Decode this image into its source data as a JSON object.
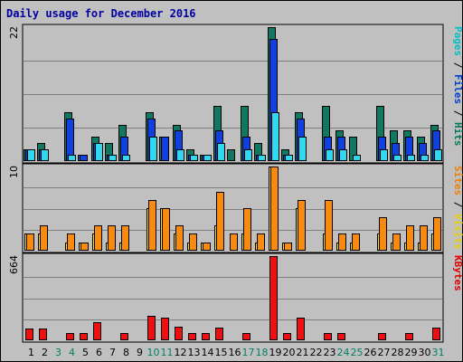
{
  "chart_data": {
    "type": "bar",
    "title": "Daily usage for December 2016",
    "x": [
      "1",
      "2",
      "3",
      "4",
      "5",
      "6",
      "7",
      "8",
      "9",
      "10",
      "11",
      "12",
      "13",
      "14",
      "15",
      "16",
      "17",
      "18",
      "19",
      "20",
      "21",
      "22",
      "23",
      "24",
      "25",
      "26",
      "27",
      "28",
      "29",
      "30",
      "31"
    ],
    "weekend_days": [
      "3",
      "4",
      "10",
      "11",
      "17",
      "18",
      "24",
      "25",
      "31"
    ],
    "panels": [
      {
        "id": "pages-files-hits",
        "axis_max_label": "22",
        "ylim": [
          0,
          22
        ],
        "legend": [
          {
            "text": "Pages",
            "color": "#00c0c0"
          },
          {
            "text": " / ",
            "color": "#000000"
          },
          {
            "text": "Files",
            "color": "#0040d0"
          },
          {
            "text": " / ",
            "color": "#000000"
          },
          {
            "text": "Hits",
            "color": "#007a5a"
          }
        ],
        "series": [
          {
            "key": "hits",
            "color": "#107860",
            "values": [
              2,
              3,
              0,
              8,
              1,
              4,
              3,
              6,
              0,
              8,
              4,
              6,
              2,
              1,
              9,
              2,
              9,
              3,
              22,
              2,
              8,
              0,
              9,
              5,
              4,
              0,
              9,
              5,
              5,
              4,
              6
            ]
          },
          {
            "key": "files",
            "color": "#1040e0",
            "values": [
              2,
              2,
              0,
              7,
              1,
              3,
              1,
              4,
              0,
              7,
              4,
              5,
              1,
              1,
              5,
              0,
              4,
              1,
              20,
              1,
              7,
              0,
              4,
              4,
              0,
              0,
              4,
              3,
              4,
              3,
              5
            ]
          },
          {
            "key": "pages",
            "color": "#30d8f0",
            "values": [
              2,
              2,
              0,
              1,
              0,
              3,
              1,
              1,
              0,
              4,
              0,
              2,
              1,
              1,
              3,
              0,
              2,
              1,
              8,
              1,
              4,
              0,
              2,
              2,
              1,
              0,
              2,
              1,
              1,
              1,
              2
            ]
          }
        ]
      },
      {
        "id": "sites-visits",
        "axis_max_label": "10",
        "ylim": [
          0,
          10
        ],
        "legend": [
          {
            "text": "Sites",
            "color": "#f08000"
          },
          {
            "text": " / ",
            "color": "#000000"
          },
          {
            "text": "Visits",
            "color": "#e8d000"
          }
        ],
        "series": [
          {
            "key": "visits",
            "color": "#f8e020",
            "values": [
              2,
              2,
              0,
              1,
              1,
              2,
              1,
              1,
              0,
              5,
              5,
              2,
              1,
              1,
              3,
              0,
              2,
              1,
              10,
              1,
              5,
              0,
              2,
              1,
              1,
              0,
              2,
              1,
              1,
              1,
              2
            ]
          },
          {
            "key": "sites",
            "color": "#f88a10",
            "values": [
              2,
              3,
              0,
              2,
              1,
              3,
              3,
              3,
              0,
              6,
              5,
              3,
              2,
              1,
              7,
              2,
              5,
              2,
              10,
              1,
              6,
              0,
              6,
              2,
              2,
              0,
              4,
              2,
              3,
              3,
              4
            ]
          }
        ]
      },
      {
        "id": "kbytes",
        "axis_max_label": "664",
        "ylim": [
          0,
          664
        ],
        "legend": [
          {
            "text": "KBytes",
            "color": "#e00000"
          }
        ],
        "series": [
          {
            "key": "kbytes",
            "color": "#ee1010",
            "values": [
              90,
              90,
              0,
              60,
              60,
              140,
              0,
              60,
              0,
              190,
              175,
              110,
              60,
              60,
              100,
              0,
              60,
              0,
              664,
              60,
              180,
              0,
              60,
              60,
              0,
              0,
              60,
              0,
              60,
              0,
              100
            ]
          }
        ]
      }
    ]
  }
}
